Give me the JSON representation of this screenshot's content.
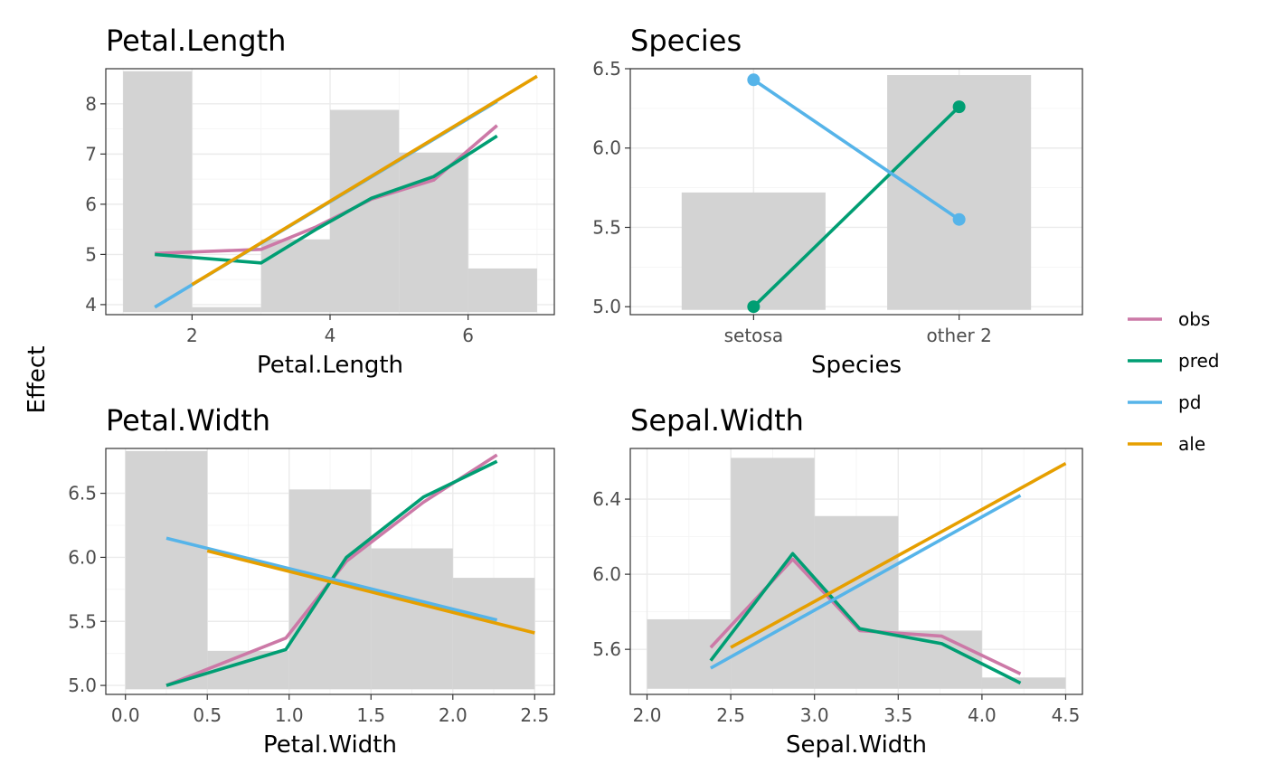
{
  "figure": {
    "ylabel": "Effect"
  },
  "legend": [
    {
      "key": "obs",
      "label": "obs",
      "color": "#CC79A7"
    },
    {
      "key": "pred",
      "label": "pred",
      "color": "#009E73"
    },
    {
      "key": "pd",
      "label": "pd",
      "color": "#56B4E9"
    },
    {
      "key": "ale",
      "label": "ale",
      "color": "#E69F00"
    }
  ],
  "chart_data": [
    {
      "id": "petal-length",
      "type": "line",
      "title": "Petal.Length",
      "xlabel": "Petal.Length",
      "xlim": [
        0.75,
        7.25
      ],
      "ylim": [
        3.8,
        8.7
      ],
      "xticks": [
        2,
        4,
        6
      ],
      "yticks": [
        4,
        5,
        6,
        7,
        8
      ],
      "histogram": {
        "breaks": [
          1,
          2,
          3,
          4,
          5,
          6,
          7
        ],
        "tops": [
          8.65,
          3.95,
          5.3,
          7.88,
          7.03,
          4.72
        ],
        "base": 3.85
      },
      "series": [
        {
          "key": "obs",
          "x": [
            1.46,
            3.0,
            3.8,
            4.6,
            5.5,
            6.42
          ],
          "y": [
            5.02,
            5.1,
            5.55,
            6.1,
            6.48,
            7.57
          ]
        },
        {
          "key": "pred",
          "x": [
            1.46,
            3.0,
            3.8,
            4.6,
            5.5,
            6.42
          ],
          "y": [
            5.0,
            4.83,
            5.5,
            6.12,
            6.55,
            7.36
          ]
        },
        {
          "key": "pd",
          "x": [
            1.46,
            6.42
          ],
          "y": [
            3.95,
            8.05
          ]
        },
        {
          "key": "ale",
          "x": [
            2.0,
            7.0
          ],
          "y": [
            4.4,
            8.55
          ]
        }
      ]
    },
    {
      "id": "species",
      "type": "line",
      "title": "Species",
      "xlabel": "Species",
      "categories": [
        "setosa",
        "other 2"
      ],
      "ylim": [
        4.95,
        6.5
      ],
      "yticks": [
        5.0,
        5.5,
        6.0,
        6.5
      ],
      "ytick_labels": [
        "5.0",
        "5.5",
        "6.0",
        "6.5"
      ],
      "bars": {
        "tops": [
          5.72,
          6.46
        ],
        "base": 4.98
      },
      "series": [
        {
          "key": "pred",
          "y": [
            5.0,
            6.26
          ],
          "points": true
        },
        {
          "key": "pd",
          "y": [
            6.43,
            5.55
          ],
          "points": true
        }
      ]
    },
    {
      "id": "petal-width",
      "type": "line",
      "title": "Petal.Width",
      "xlabel": "Petal.Width",
      "xlim": [
        -0.12,
        2.62
      ],
      "ylim": [
        4.93,
        6.85
      ],
      "xticks": [
        0.0,
        0.5,
        1.0,
        1.5,
        2.0,
        2.5
      ],
      "xtick_labels": [
        "0.0",
        "0.5",
        "1.0",
        "1.5",
        "2.0",
        "2.5"
      ],
      "yticks": [
        5.0,
        5.5,
        6.0,
        6.5
      ],
      "ytick_labels": [
        "5.0",
        "5.5",
        "6.0",
        "6.5"
      ],
      "histogram": {
        "breaks": [
          0.0,
          0.5,
          1.0,
          1.5,
          2.0,
          2.5
        ],
        "tops": [
          6.83,
          5.27,
          6.53,
          6.07,
          5.84
        ],
        "base": 4.97
      },
      "series": [
        {
          "key": "obs",
          "x": [
            0.25,
            0.98,
            1.35,
            1.82,
            2.27
          ],
          "y": [
            5.0,
            5.37,
            5.97,
            6.43,
            6.8
          ]
        },
        {
          "key": "pred",
          "x": [
            0.25,
            0.98,
            1.35,
            1.82,
            2.27
          ],
          "y": [
            5.0,
            5.28,
            6.0,
            6.47,
            6.75
          ]
        },
        {
          "key": "pd",
          "x": [
            0.25,
            2.27
          ],
          "y": [
            6.15,
            5.51
          ]
        },
        {
          "key": "ale",
          "x": [
            0.5,
            2.5
          ],
          "y": [
            6.05,
            5.41
          ]
        }
      ]
    },
    {
      "id": "sepal-width",
      "type": "line",
      "title": "Sepal.Width",
      "xlabel": "Sepal.Width",
      "xlim": [
        1.9,
        4.6
      ],
      "ylim": [
        5.36,
        6.67
      ],
      "xticks": [
        2.0,
        2.5,
        3.0,
        3.5,
        4.0,
        4.5
      ],
      "xtick_labels": [
        "2.0",
        "2.5",
        "3.0",
        "3.5",
        "4.0",
        "4.5"
      ],
      "yticks": [
        5.6,
        6.0,
        6.4
      ],
      "ytick_labels": [
        "5.6",
        "6.0",
        "6.4"
      ],
      "histogram": {
        "breaks": [
          2.0,
          2.5,
          3.0,
          3.5,
          4.0,
          4.5
        ],
        "tops": [
          5.76,
          6.62,
          6.31,
          5.7,
          5.45
        ],
        "base": 5.39
      },
      "series": [
        {
          "key": "obs",
          "x": [
            2.38,
            2.87,
            3.27,
            3.76,
            4.23
          ],
          "y": [
            5.61,
            6.08,
            5.7,
            5.67,
            5.47
          ]
        },
        {
          "key": "pred",
          "x": [
            2.38,
            2.87,
            3.27,
            3.76,
            4.23
          ],
          "y": [
            5.54,
            6.11,
            5.71,
            5.63,
            5.42
          ]
        },
        {
          "key": "pd",
          "x": [
            2.38,
            4.23
          ],
          "y": [
            5.5,
            6.42
          ]
        },
        {
          "key": "ale",
          "x": [
            2.5,
            4.5
          ],
          "y": [
            5.61,
            6.59
          ]
        }
      ]
    }
  ]
}
